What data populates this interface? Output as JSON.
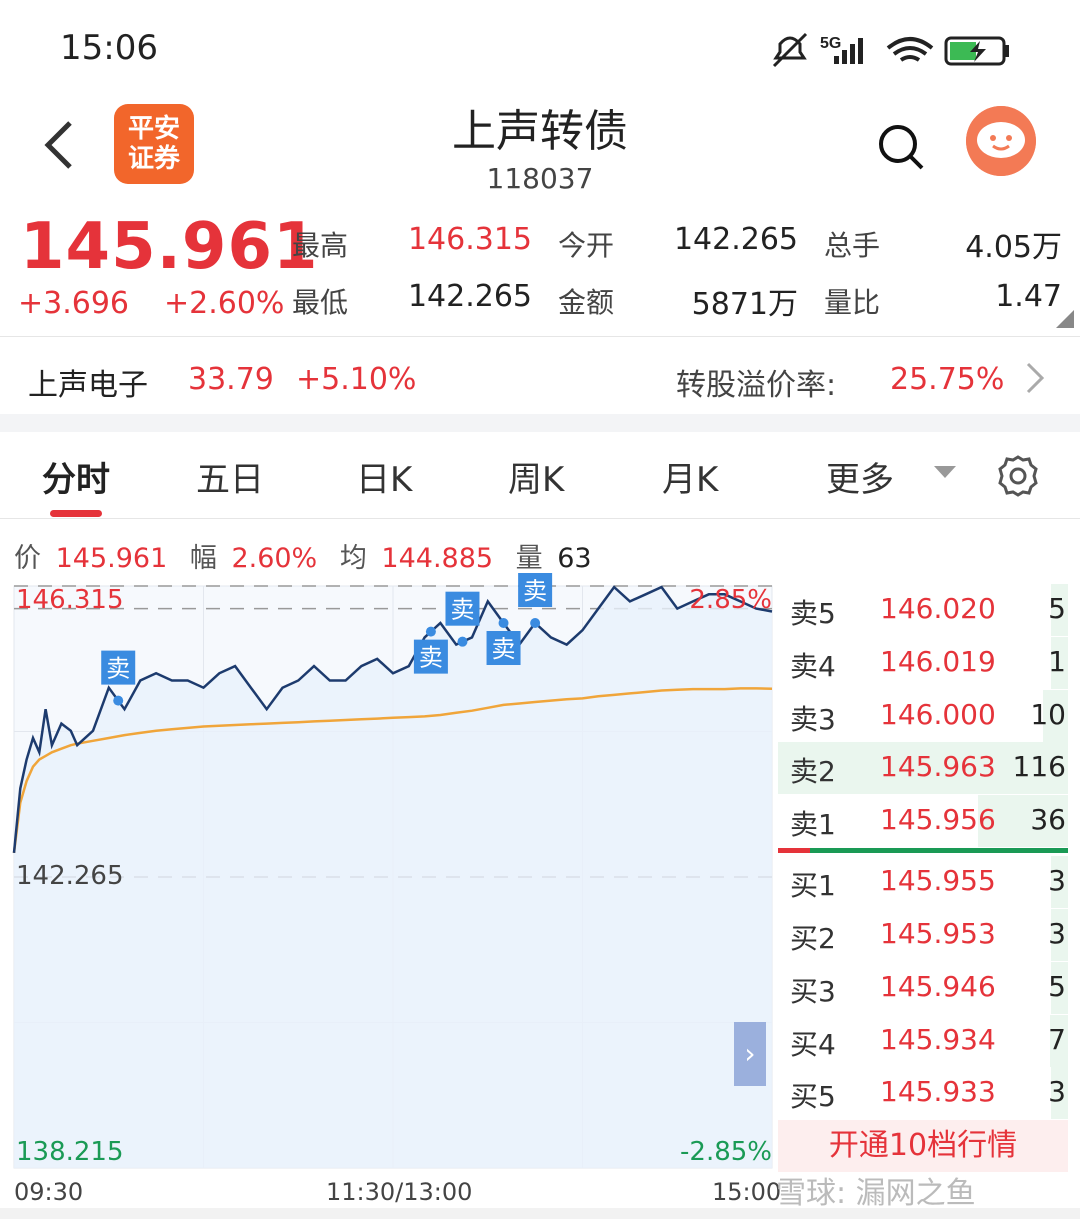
{
  "status": {
    "time": "15:06",
    "network": "5G"
  },
  "header": {
    "title": "上声转债",
    "code": "118037",
    "logo_line1": "平安",
    "logo_line2": "证券"
  },
  "quote": {
    "last_price": "145.961",
    "change": "+3.696",
    "change_pct": "+2.60%",
    "high_label": "最高",
    "high": "146.315",
    "low_label": "最低",
    "low": "142.265",
    "open_label": "今开",
    "open": "142.265",
    "amount_label": "金额",
    "amount": "5871万",
    "volume_label": "总手",
    "volume": "4.05万",
    "ratio_label": "量比",
    "ratio": "1.47"
  },
  "underlying": {
    "name": "上声电子",
    "price": "33.79",
    "change_pct": "+5.10%",
    "premium_label": "转股溢价率:",
    "premium": "25.75%"
  },
  "tabs": [
    "分时",
    "五日",
    "日K",
    "周K",
    "月K",
    "更多"
  ],
  "info": {
    "price_label": "价",
    "price": "145.961",
    "amp_label": "幅",
    "amp": "2.60%",
    "avg_label": "均",
    "avg": "144.885",
    "vol_label": "量",
    "vol": "63"
  },
  "chart_data": {
    "type": "line",
    "y_top_label": "146.315",
    "y_mid_label": "142.265",
    "y_bottom_label": "138.215",
    "pct_top_label": "2.85%",
    "pct_bottom_label": "-2.85%",
    "ylim": [
      138.215,
      146.315
    ],
    "x_labels": [
      "09:30",
      "11:30/13:00",
      "15:00"
    ],
    "x": [
      0,
      2,
      4,
      6,
      8,
      10,
      12,
      15,
      18,
      20,
      25,
      30,
      35,
      40,
      45,
      50,
      55,
      60,
      65,
      70,
      75,
      80,
      85,
      90,
      95,
      100,
      105,
      110,
      115,
      120,
      125,
      130,
      135,
      140,
      145,
      150,
      155,
      160,
      165,
      170,
      175,
      180,
      185,
      190,
      195,
      200,
      205,
      210,
      215,
      220,
      225,
      230,
      235,
      240
    ],
    "series": [
      {
        "values": [
          142.6,
          143.5,
          143.9,
          144.2,
          144.0,
          144.6,
          144.1,
          144.4,
          144.3,
          144.1,
          144.3,
          144.9,
          144.6,
          145.0,
          145.1,
          145.0,
          145.0,
          144.9,
          145.1,
          145.2,
          144.9,
          144.6,
          144.9,
          145.0,
          145.2,
          145.0,
          145.0,
          145.2,
          145.3,
          145.1,
          145.2,
          145.6,
          145.8,
          145.5,
          145.6,
          146.1,
          145.8,
          145.5,
          145.8,
          145.6,
          145.5,
          145.7,
          146.0,
          146.3,
          146.1,
          146.2,
          146.3,
          146.0,
          146.1,
          146.2,
          146.2,
          146.1,
          146.0,
          145.96
        ]
      },
      {
        "values": [
          142.6,
          143.3,
          143.6,
          143.8,
          143.9,
          143.95,
          144.0,
          144.05,
          144.1,
          144.12,
          144.16,
          144.2,
          144.24,
          144.27,
          144.3,
          144.32,
          144.34,
          144.36,
          144.37,
          144.38,
          144.39,
          144.4,
          144.41,
          144.42,
          144.43,
          144.44,
          144.45,
          144.46,
          144.47,
          144.48,
          144.49,
          144.5,
          144.52,
          144.55,
          144.58,
          144.62,
          144.66,
          144.68,
          144.7,
          144.72,
          144.74,
          144.75,
          144.78,
          144.8,
          144.82,
          144.84,
          144.86,
          144.87,
          144.88,
          144.88,
          144.88,
          144.89,
          144.89,
          144.885
        ]
      }
    ],
    "sell_markers": [
      33,
      132,
      142,
      155,
      165
    ],
    "marker_label": "卖"
  },
  "orderbook": {
    "asks": [
      {
        "label": "卖5",
        "price": "146.020",
        "vol": "5"
      },
      {
        "label": "卖4",
        "price": "146.019",
        "vol": "1"
      },
      {
        "label": "卖3",
        "price": "146.000",
        "vol": "10"
      },
      {
        "label": "卖2",
        "price": "145.963",
        "vol": "116"
      },
      {
        "label": "卖1",
        "price": "145.956",
        "vol": "36"
      }
    ],
    "bids": [
      {
        "label": "买1",
        "price": "145.955",
        "vol": "3"
      },
      {
        "label": "买2",
        "price": "145.953",
        "vol": "3"
      },
      {
        "label": "买3",
        "price": "145.946",
        "vol": "5"
      },
      {
        "label": "买4",
        "price": "145.934",
        "vol": "7"
      },
      {
        "label": "买5",
        "price": "145.933",
        "vol": "3"
      }
    ],
    "open_level2": "开通10档行情",
    "expand": "›"
  },
  "watermark": "雪球: 漏网之鱼"
}
